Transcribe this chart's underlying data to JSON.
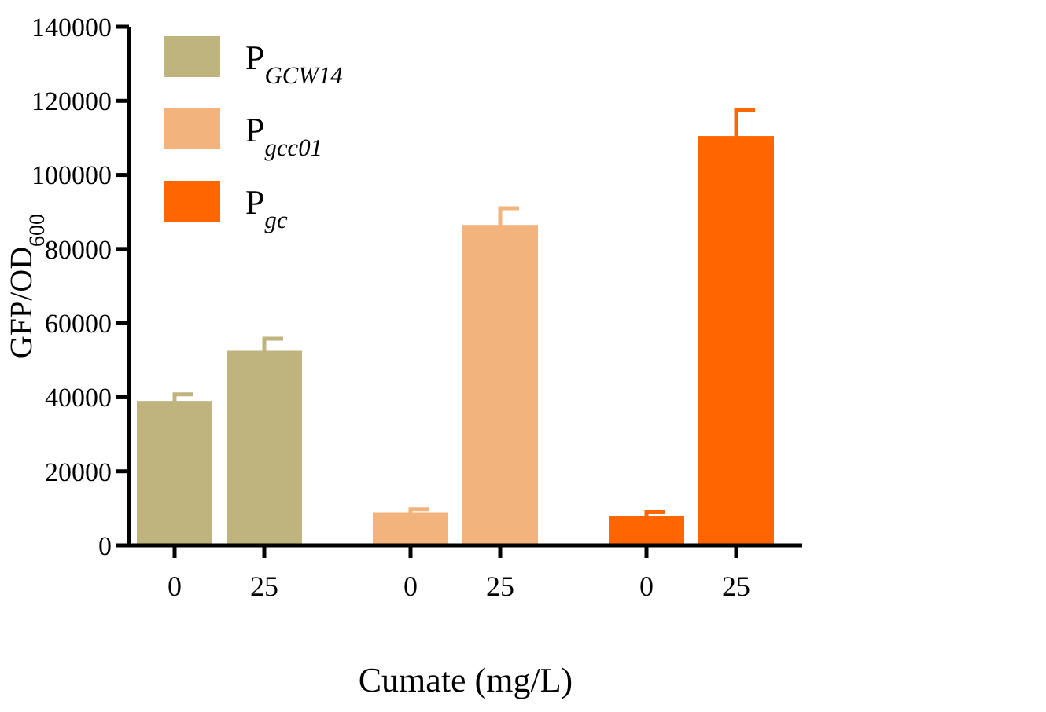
{
  "chart_data": {
    "type": "bar",
    "xlabel": "Cumate (mg/L)",
    "ylabel": "GFP/OD$_{600}$",
    "categories": [
      "0",
      "25",
      "0",
      "25",
      "0",
      "25"
    ],
    "series": [
      {
        "name": "P$_{GCW14}$",
        "color": "#bfb47e",
        "values": [
          39000,
          52500,
          null,
          null,
          null,
          null
        ],
        "errors": [
          1800,
          3300,
          null,
          null,
          null,
          null
        ]
      },
      {
        "name": "P$_{gcc01}$",
        "color": "#f2b47c",
        "values": [
          null,
          null,
          8800,
          86500,
          null,
          null
        ],
        "errors": [
          null,
          null,
          1000,
          4500,
          null,
          null
        ]
      },
      {
        "name": "P$_{gc}$",
        "color": "#ff6600",
        "values": [
          null,
          null,
          null,
          null,
          8000,
          110500
        ],
        "errors": [
          null,
          null,
          null,
          null,
          1000,
          7000
        ]
      }
    ],
    "ylim": [
      0,
      140000
    ],
    "yticks": [
      0,
      20000,
      40000,
      60000,
      80000,
      100000,
      120000,
      140000
    ],
    "legend": "top left",
    "stacked": true
  }
}
